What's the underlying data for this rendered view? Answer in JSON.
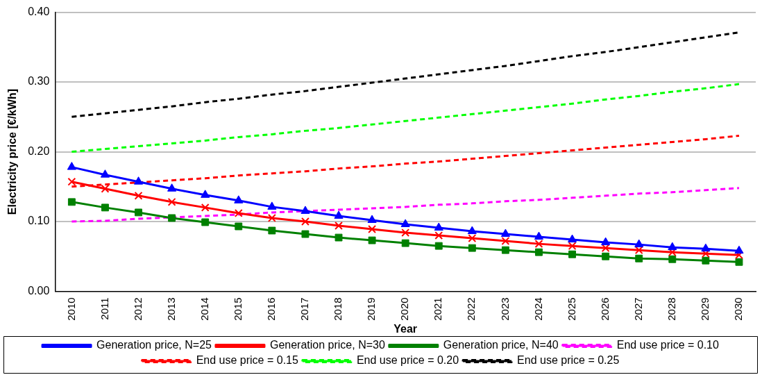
{
  "chart_data": {
    "type": "line",
    "xlabel": "Year",
    "ylabel": "Electricity price [€/kWh]",
    "categories": [
      "2010",
      "2011",
      "2012",
      "2013",
      "2014",
      "2015",
      "2016",
      "2017",
      "2018",
      "2019",
      "2020",
      "2021",
      "2022",
      "2023",
      "2024",
      "2025",
      "2026",
      "2027",
      "2028",
      "2029",
      "2030"
    ],
    "ylim": [
      0,
      0.4
    ],
    "yticks": [
      {
        "value": 0,
        "label": "0.00"
      },
      {
        "value": 0.1,
        "label": "0.10"
      },
      {
        "value": 0.2,
        "label": "0.20"
      },
      {
        "value": 0.3,
        "label": "0.30"
      },
      {
        "value": 0.4,
        "label": "0.40"
      }
    ],
    "grid": "y",
    "legend": "bottom",
    "series": [
      {
        "name": "Generation price, N=25",
        "color": "#0000ff",
        "marker": "triangle",
        "line_style": "solid",
        "values": [
          0.178,
          0.167,
          0.157,
          0.147,
          0.138,
          0.13,
          0.121,
          0.115,
          0.108,
          0.102,
          0.096,
          0.091,
          0.086,
          0.082,
          0.078,
          0.074,
          0.07,
          0.067,
          0.063,
          0.061,
          0.058
        ]
      },
      {
        "name": "Generation price, N=30",
        "color": "#ff0000",
        "marker": "cross",
        "line_style": "solid",
        "values": [
          0.157,
          0.147,
          0.137,
          0.128,
          0.12,
          0.112,
          0.105,
          0.1,
          0.094,
          0.089,
          0.084,
          0.08,
          0.076,
          0.072,
          0.068,
          0.065,
          0.062,
          0.059,
          0.056,
          0.054,
          0.052
        ]
      },
      {
        "name": "Generation price, N=40",
        "color": "#008000",
        "marker": "square",
        "line_style": "solid",
        "values": [
          0.128,
          0.12,
          0.113,
          0.105,
          0.099,
          0.093,
          0.087,
          0.082,
          0.077,
          0.073,
          0.069,
          0.065,
          0.062,
          0.059,
          0.056,
          0.053,
          0.05,
          0.047,
          0.046,
          0.044,
          0.042
        ]
      },
      {
        "name": "End use price = 0.10",
        "color": "#ff00ff",
        "marker": "none",
        "line_style": "dashed",
        "values": [
          0.1,
          0.101,
          0.104,
          0.106,
          0.108,
          0.11,
          0.113,
          0.115,
          0.117,
          0.119,
          0.121,
          0.124,
          0.126,
          0.129,
          0.131,
          0.134,
          0.137,
          0.14,
          0.142,
          0.145,
          0.148
        ]
      },
      {
        "name": "End use price = 0.15",
        "color": "#ff0000",
        "marker": "none",
        "line_style": "dashed",
        "values": [
          0.15,
          0.153,
          0.156,
          0.159,
          0.162,
          0.166,
          0.169,
          0.172,
          0.176,
          0.179,
          0.183,
          0.186,
          0.19,
          0.194,
          0.198,
          0.202,
          0.206,
          0.21,
          0.214,
          0.218,
          0.223
        ]
      },
      {
        "name": "End use price = 0.20",
        "color": "#00ff00",
        "marker": "none",
        "line_style": "dashed",
        "values": [
          0.2,
          0.204,
          0.208,
          0.212,
          0.216,
          0.221,
          0.225,
          0.23,
          0.234,
          0.239,
          0.244,
          0.249,
          0.254,
          0.259,
          0.264,
          0.269,
          0.275,
          0.28,
          0.286,
          0.291,
          0.297
        ]
      },
      {
        "name": "End use price = 0.25",
        "color": "#000000",
        "marker": "none",
        "line_style": "dashed",
        "values": [
          0.25,
          0.255,
          0.26,
          0.265,
          0.271,
          0.276,
          0.282,
          0.287,
          0.293,
          0.299,
          0.305,
          0.311,
          0.317,
          0.323,
          0.33,
          0.337,
          0.343,
          0.35,
          0.357,
          0.364,
          0.371
        ]
      }
    ]
  }
}
